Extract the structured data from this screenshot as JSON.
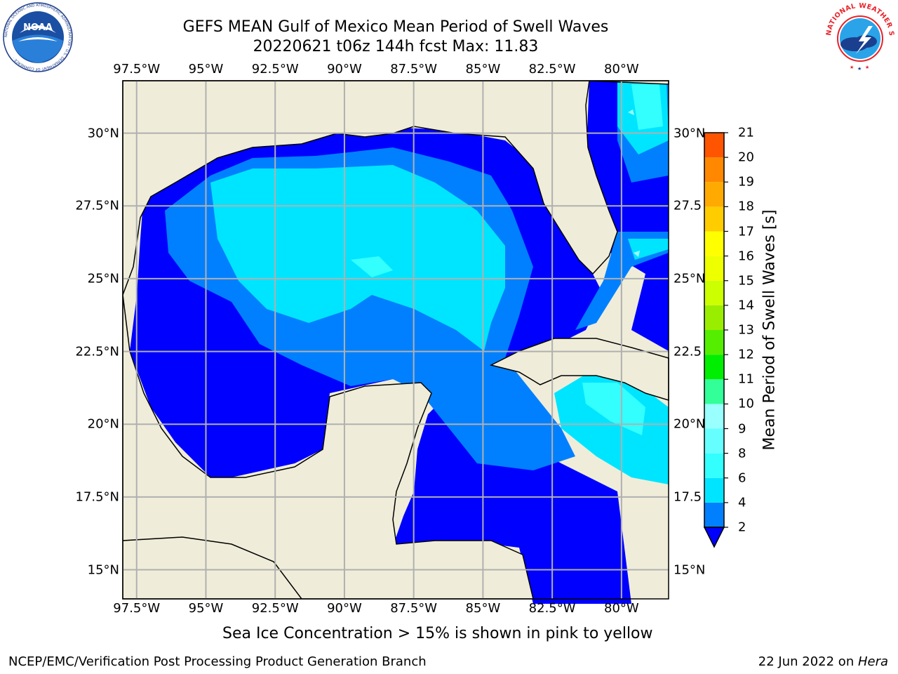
{
  "title": {
    "line1": "GEFS MEAN Gulf of Mexico Mean Period of Swell Waves",
    "line2": "20220621 t06z 144h fcst   Max: 11.83"
  },
  "map": {
    "lon_min": -98.0,
    "lon_max": -78.3,
    "lat_min": 14.0,
    "lat_max": 31.8,
    "land_color": "#efedd9",
    "grid_color": "#b0b0b0",
    "lon_ticks": [
      "97.5°W",
      "95°W",
      "92.5°W",
      "90°W",
      "87.5°W",
      "85°W",
      "82.5°W",
      "80°W"
    ],
    "lon_values": [
      -97.5,
      -95,
      -92.5,
      -90,
      -87.5,
      -85,
      -82.5,
      -80
    ],
    "lat_ticks_left": [
      "30°N",
      "27.5°N",
      "25°N",
      "22.5°N",
      "20°N",
      "17.5°N",
      "15°N"
    ],
    "lat_ticks_right": [
      "30°N",
      "27.5",
      "25°N",
      "22.5",
      "20°N",
      "17.5",
      "15°N"
    ],
    "lat_values": [
      30,
      27.5,
      25,
      22.5,
      20,
      17.5,
      15
    ]
  },
  "colorbar": {
    "label": "Mean Period of Swell Waves [s]",
    "tick_labels": [
      "2",
      "4",
      "6",
      "8",
      "9",
      "10",
      "11",
      "12",
      "13",
      "14",
      "15",
      "16",
      "17",
      "18",
      "19",
      "20",
      "21"
    ],
    "levels": [
      2,
      4,
      6,
      8,
      9,
      10,
      11,
      12,
      13,
      14,
      15,
      16,
      17,
      18,
      19,
      20,
      21
    ],
    "colors": [
      "#0080ff",
      "#00e5ff",
      "#33ffff",
      "#66ffff",
      "#99ffff",
      "#33ff99",
      "#00ee00",
      "#55ee00",
      "#99ee00",
      "#ccff00",
      "#eeff00",
      "#ffff00",
      "#ffcc00",
      "#ffaa00",
      "#ff8800",
      "#ff5500",
      "#ff2200",
      "#ff0000"
    ],
    "under_color": "#0000ff"
  },
  "note": "Sea Ice Concentration > 15% is shown in pink to yellow",
  "footer": {
    "left": "NCEP/EMC/Verification Post Processing Product Generation Branch",
    "date": "22 Jun 2022 on ",
    "host": "Hera"
  },
  "logos": {
    "noaa_text": "NOAA",
    "noaa_ring": "NATIONAL OCEANIC AND ATMOSPHERIC ADMINISTRATION · U.S. DEPARTMENT OF COMMERCE ·",
    "nws_ring": "NATIONAL WEATHER SERVICE"
  }
}
